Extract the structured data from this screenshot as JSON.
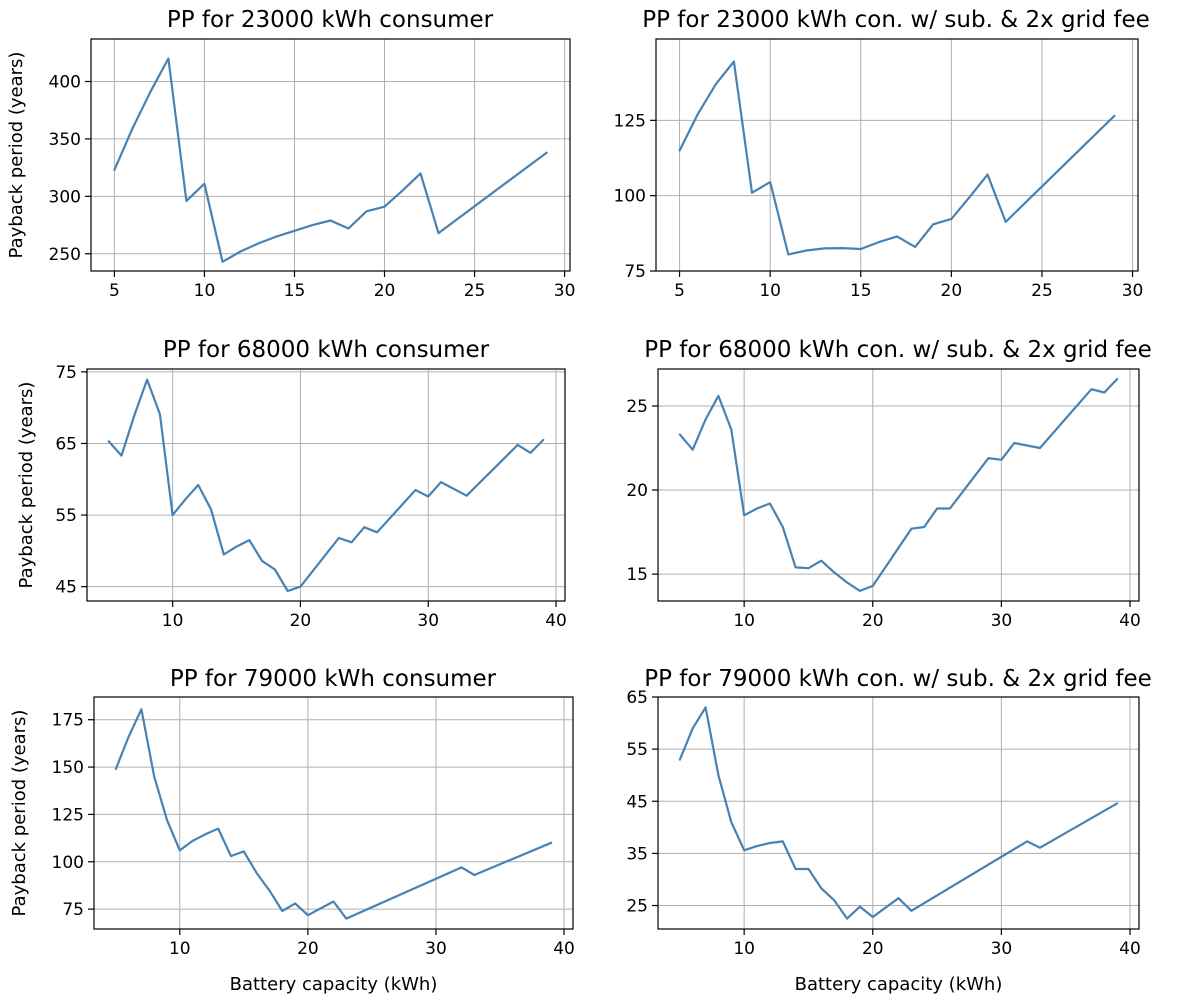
{
  "colors": {
    "line": "#4682b4"
  },
  "chart_data": [
    {
      "type": "line",
      "title": "PP for 23000 kWh consumer",
      "xlabel": "",
      "ylabel": "Payback period (years)",
      "xlim": [
        3.7,
        30.3
      ],
      "ylim": [
        235,
        437
      ],
      "xticks": [
        5,
        10,
        15,
        20,
        25,
        30
      ],
      "yticks": [
        250,
        300,
        350,
        400
      ],
      "x": [
        5,
        6,
        7,
        8,
        9,
        10,
        11,
        12,
        13,
        14,
        15,
        16,
        17,
        18,
        19,
        20,
        21,
        22,
        23,
        29
      ],
      "y": [
        323,
        359,
        391,
        420,
        296,
        311,
        243,
        252,
        259,
        265,
        270,
        275,
        279,
        272,
        287,
        291,
        305,
        320,
        268,
        338
      ],
      "grid": true
    },
    {
      "type": "line",
      "title": "PP for 23000 kWh con. w/ sub. & 2x grid fee",
      "xlabel": "",
      "ylabel": "",
      "xlim": [
        3.7,
        30.3
      ],
      "ylim": [
        75,
        152
      ],
      "xticks": [
        5,
        10,
        15,
        20,
        25,
        30
      ],
      "yticks": [
        75,
        100,
        125
      ],
      "x": [
        5,
        6,
        7,
        8,
        9,
        10,
        11,
        12,
        13,
        14,
        15,
        16,
        17,
        18,
        19,
        20,
        21,
        22,
        23,
        29
      ],
      "y": [
        115,
        127,
        137,
        144.5,
        101,
        104.5,
        80.5,
        81.8,
        82.5,
        82.6,
        82.3,
        84.6,
        86.5,
        83,
        90.5,
        92.3,
        99.5,
        107,
        91.3,
        126.5
      ],
      "grid": true
    },
    {
      "type": "line",
      "title": "PP for 68000 kWh consumer",
      "xlabel": "",
      "ylabel": "Payback period (years)",
      "xlim": [
        3.3,
        40.7
      ],
      "ylim": [
        43,
        75.4
      ],
      "xticks": [
        10,
        20,
        30,
        40
      ],
      "yticks": [
        45,
        55,
        65,
        75
      ],
      "x": [
        5,
        6,
        7,
        8,
        9,
        10,
        11,
        12,
        13,
        14,
        15,
        16,
        17,
        18,
        19,
        20,
        23,
        24,
        25,
        26,
        29,
        30,
        31,
        33,
        37,
        38,
        39
      ],
      "y": [
        65.3,
        63.3,
        68.9,
        73.9,
        69.1,
        55,
        57.2,
        59.2,
        55.8,
        49.5,
        50.6,
        51.5,
        48.6,
        47.4,
        44.4,
        45,
        51.8,
        51.2,
        53.3,
        52.6,
        58.5,
        57.6,
        59.6,
        57.7,
        64.8,
        63.7,
        65.5
      ],
      "grid": true
    },
    {
      "type": "line",
      "title": "PP for 68000 kWh con. w/ sub. & 2x grid fee",
      "xlabel": "",
      "ylabel": "",
      "xlim": [
        3.3,
        40.7
      ],
      "ylim": [
        13.4,
        27.2
      ],
      "xticks": [
        10,
        20,
        30,
        40
      ],
      "yticks": [
        15,
        20,
        25
      ],
      "x": [
        5,
        6,
        7,
        8,
        9,
        10,
        11,
        12,
        13,
        14,
        15,
        16,
        17,
        18,
        19,
        20,
        23,
        24,
        25,
        26,
        29,
        30,
        31,
        33,
        37,
        38,
        39
      ],
      "y": [
        23.3,
        22.4,
        24.2,
        25.6,
        23.6,
        18.5,
        18.9,
        19.2,
        17.8,
        15.4,
        15.35,
        15.8,
        15.1,
        14.5,
        14,
        14.3,
        17.7,
        17.8,
        18.9,
        18.9,
        21.9,
        21.8,
        22.8,
        22.5,
        26,
        25.8,
        26.6
      ],
      "grid": true
    },
    {
      "type": "line",
      "title": "PP for 79000 kWh consumer",
      "xlabel": "Battery capacity (kWh)",
      "ylabel": "Payback period (years)",
      "xlim": [
        3.3,
        40.7
      ],
      "ylim": [
        64.5,
        187
      ],
      "xticks": [
        10,
        20,
        30,
        40
      ],
      "yticks": [
        75,
        100,
        125,
        150,
        175
      ],
      "x": [
        5,
        6,
        7,
        8,
        9,
        10,
        11,
        12,
        13,
        14,
        15,
        16,
        17,
        18,
        19,
        20,
        22,
        23,
        32,
        33,
        39
      ],
      "y": [
        149,
        166,
        180.5,
        145,
        122,
        106,
        111,
        114.5,
        117.5,
        103,
        105.5,
        94,
        84.8,
        74,
        78,
        71.8,
        79,
        70,
        97,
        93,
        110
      ],
      "grid": true
    },
    {
      "type": "line",
      "title": "PP for 79000 kWh con. w/ sub. & 2x grid fee",
      "xlabel": "Battery capacity (kWh)",
      "ylabel": "",
      "xlim": [
        3.3,
        40.7
      ],
      "ylim": [
        20.5,
        65
      ],
      "xticks": [
        10,
        20,
        30,
        40
      ],
      "yticks": [
        25,
        35,
        45,
        55,
        65
      ],
      "x": [
        5,
        6,
        7,
        8,
        9,
        10,
        11,
        12,
        13,
        14,
        15,
        16,
        17,
        18,
        19,
        20,
        22,
        23,
        32,
        33,
        39
      ],
      "y": [
        53,
        59,
        63,
        50,
        41,
        35.6,
        36.4,
        37,
        37.3,
        32,
        32,
        28.3,
        26,
        22.5,
        24.8,
        22.8,
        26.4,
        24,
        37.3,
        36.1,
        44.6
      ],
      "grid": true
    }
  ]
}
